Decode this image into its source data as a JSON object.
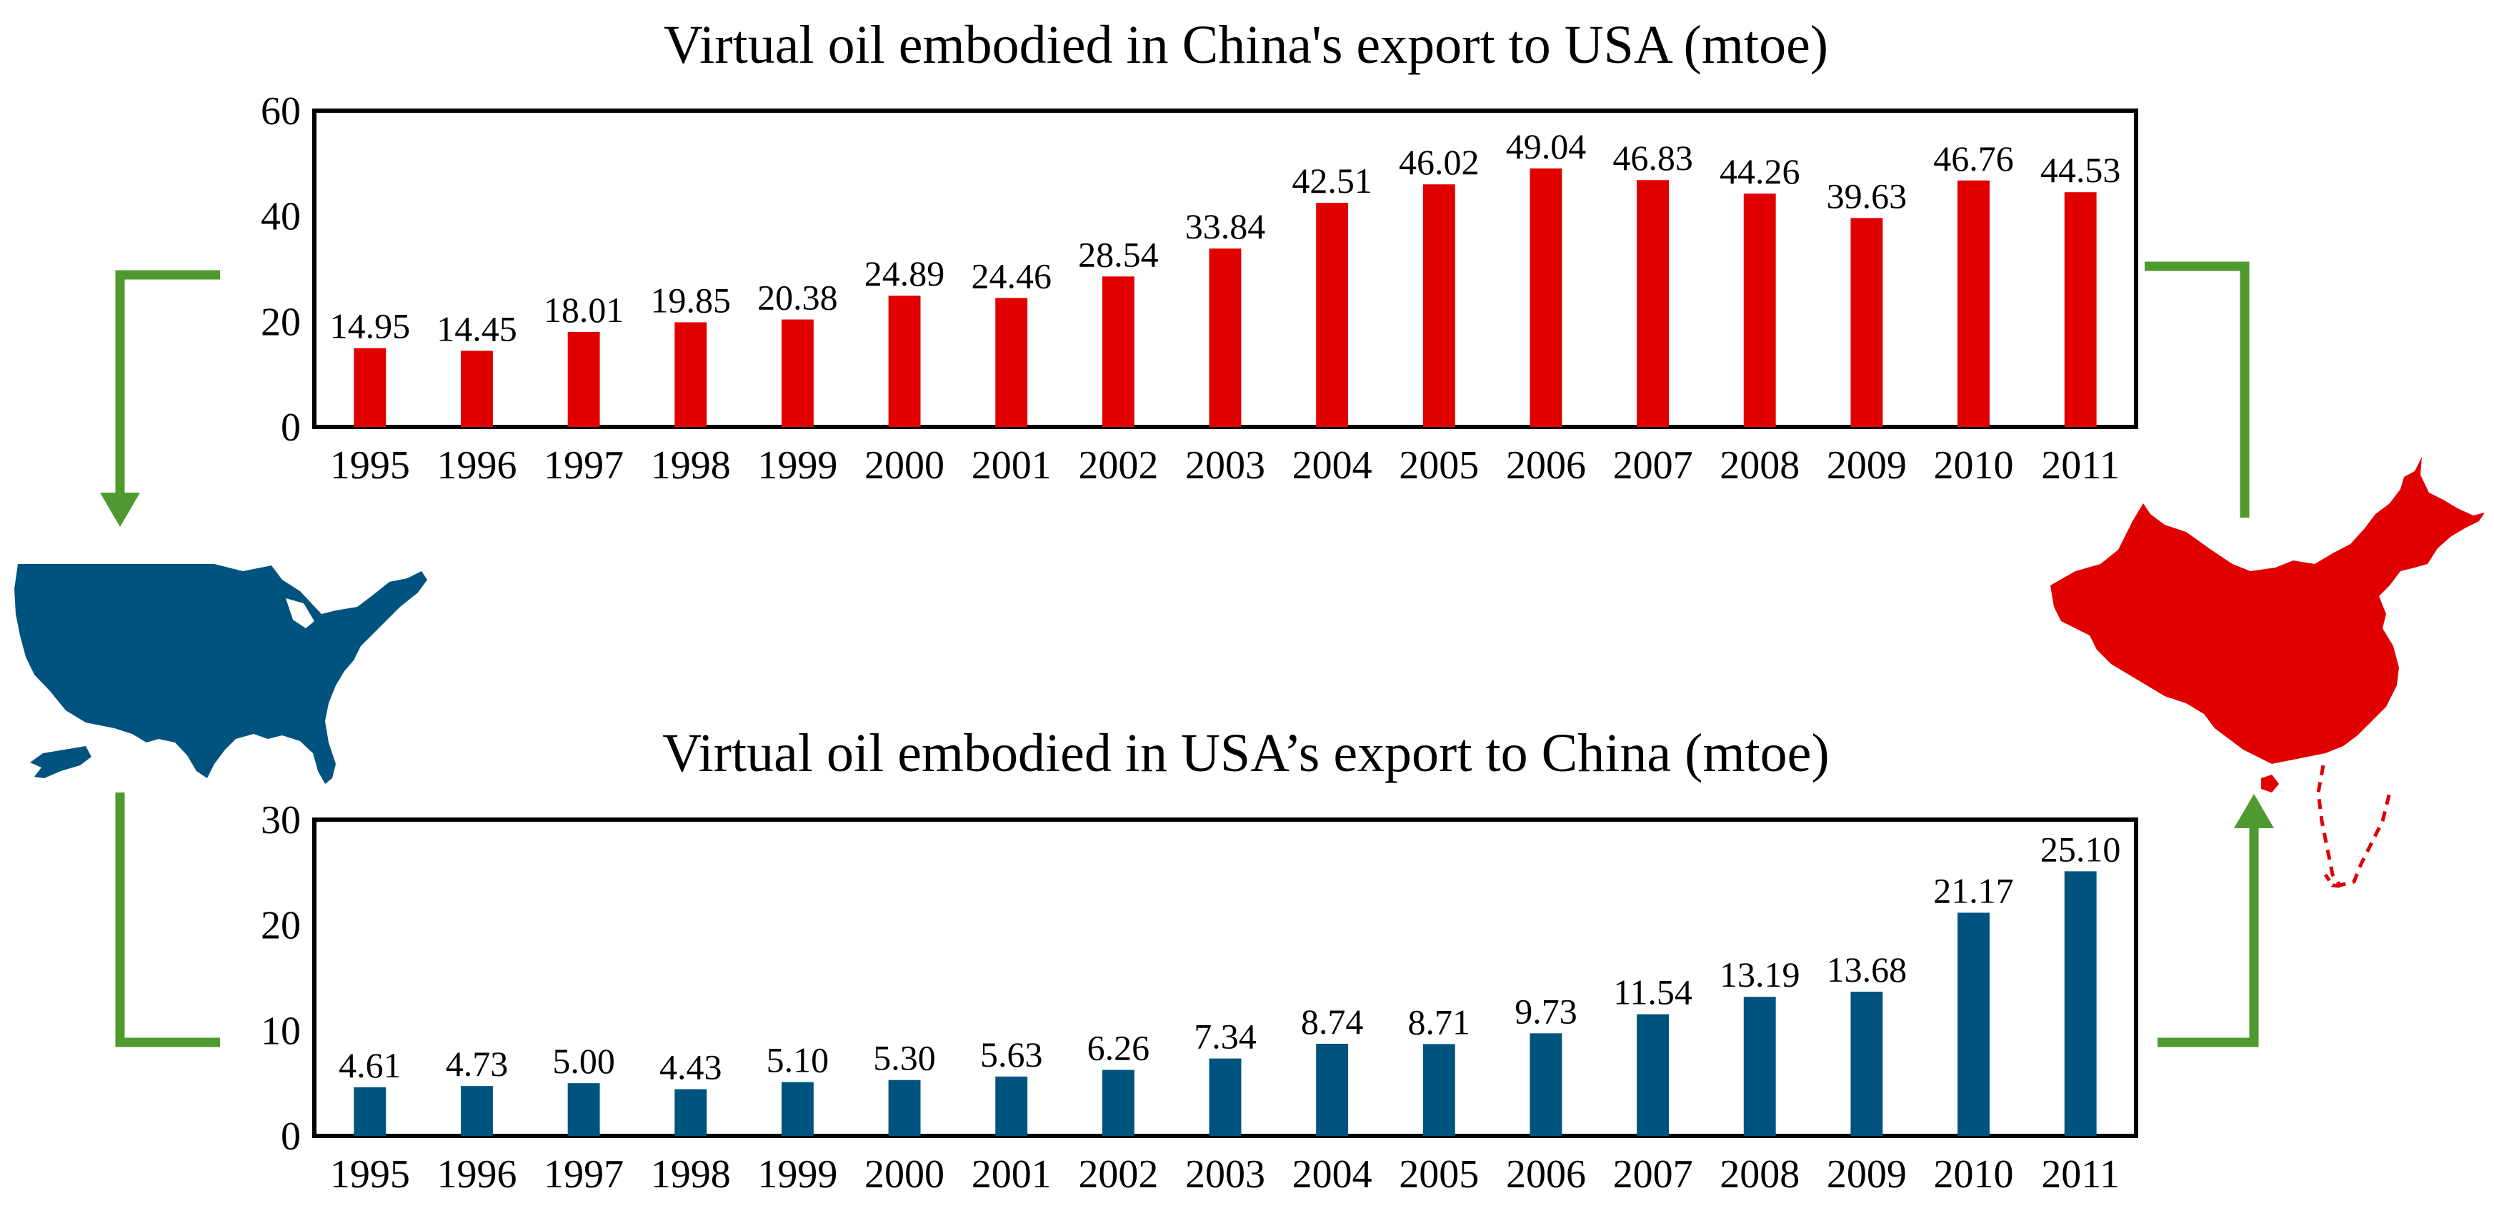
{
  "colors": {
    "china_bar": "#E00000",
    "usa_bar": "#00537E",
    "arrow": "#4E9A2E",
    "china_map": "#E00000",
    "usa_map": "#00537E"
  },
  "icons": {
    "usa": "usa-map-icon",
    "china": "china-map-icon"
  },
  "chart_data": [
    {
      "type": "bar",
      "title": "Virtual oil embodied in China's export to USA (mtoe)",
      "xlabel": "",
      "ylabel": "",
      "ylim": [
        0,
        60
      ],
      "yticks": [
        "0",
        "20",
        "40",
        "60"
      ],
      "grid": false,
      "categories": [
        "1995",
        "1996",
        "1997",
        "1998",
        "1999",
        "2000",
        "2001",
        "2002",
        "2003",
        "2004",
        "2005",
        "2006",
        "2007",
        "2008",
        "2009",
        "2010",
        "2011"
      ],
      "values": [
        14.95,
        14.45,
        18.01,
        19.85,
        20.38,
        24.89,
        24.46,
        28.54,
        33.84,
        42.51,
        46.02,
        49.04,
        46.83,
        44.26,
        39.63,
        46.76,
        44.53
      ],
      "labels": [
        "14.95",
        "14.45",
        "18.01",
        "19.85",
        "20.38",
        "24.89",
        "24.46",
        "28.54",
        "33.84",
        "42.51",
        "46.02",
        "49.04",
        "46.83",
        "44.26",
        "39.63",
        "46.76",
        "44.53"
      ]
    },
    {
      "type": "bar",
      "title": "Virtual oil embodied in USA’s export to China (mtoe)",
      "xlabel": "",
      "ylabel": "",
      "ylim": [
        0,
        30
      ],
      "yticks": [
        "0",
        "10",
        "20",
        "30"
      ],
      "grid": false,
      "categories": [
        "1995",
        "1996",
        "1997",
        "1998",
        "1999",
        "2000",
        "2001",
        "2002",
        "2003",
        "2004",
        "2005",
        "2006",
        "2007",
        "2008",
        "2009",
        "2010",
        "2011"
      ],
      "values": [
        4.61,
        4.73,
        5.0,
        4.43,
        5.1,
        5.3,
        5.63,
        6.26,
        7.34,
        8.74,
        8.71,
        9.73,
        11.54,
        13.19,
        13.68,
        21.17,
        25.1
      ],
      "labels": [
        "4.61",
        "4.73",
        "5.00",
        "4.43",
        "5.10",
        "5.30",
        "5.63",
        "6.26",
        "7.34",
        "8.74",
        "8.71",
        "9.73",
        "11.54",
        "13.19",
        "13.68",
        "21.17",
        "25.10"
      ]
    }
  ]
}
